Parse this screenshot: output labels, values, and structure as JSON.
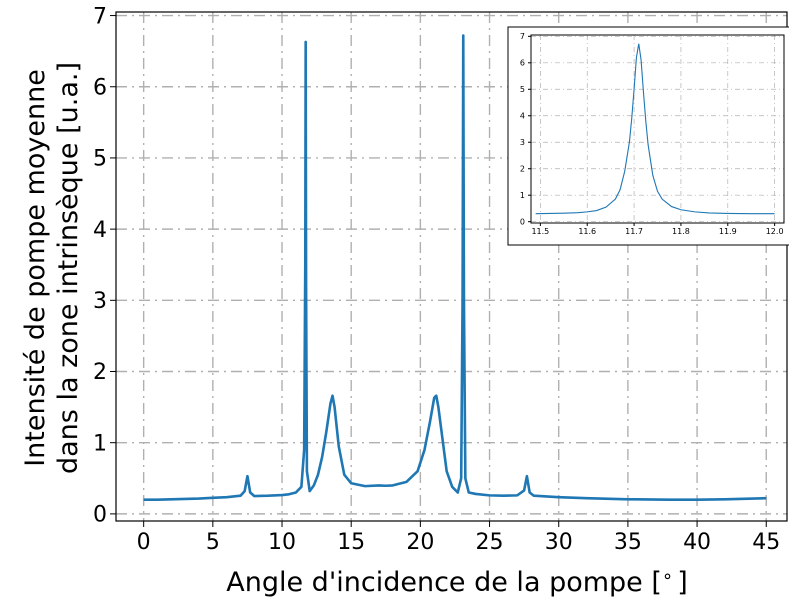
{
  "chart_data": [
    {
      "type": "line",
      "xlabel": "Angle d'incidence de la pompe [$^\\circ$]",
      "xlabel_text": "Angle d'incidence de la pompe [",
      "xlabel_unit": "∘",
      "xlabel_close": "]",
      "ylabel_line1": "Intensité de pompe moyenne",
      "ylabel_line2": "dans la zone intrinsèque [u.a.]",
      "xlim": [
        -2,
        46.5
      ],
      "ylim": [
        -0.1,
        7.05
      ],
      "xticks": [
        0,
        5,
        10,
        15,
        20,
        25,
        30,
        35,
        40,
        45
      ],
      "yticks": [
        0,
        1,
        2,
        3,
        4,
        5,
        6,
        7
      ],
      "grid": true,
      "grid_style": "dash-dot",
      "color": "#1f77b4",
      "series": [
        {
          "x": [
            0,
            1,
            2,
            3,
            4,
            5,
            6,
            7,
            7.3,
            7.5,
            7.7,
            8,
            9,
            10,
            10.5,
            11,
            11.4,
            11.6,
            11.68,
            11.71,
            11.74,
            11.8,
            12.0,
            12.3,
            12.6,
            12.9,
            13.2,
            13.5,
            13.65,
            13.8,
            14.1,
            14.5,
            15,
            16,
            17,
            17.5,
            18,
            19,
            19.8,
            20.3,
            20.7,
            21.0,
            21.15,
            21.3,
            21.6,
            21.9,
            22.3,
            22.7,
            22.95,
            23.05,
            23.1,
            23.15,
            23.25,
            23.5,
            24,
            25,
            26,
            27,
            27.5,
            27.7,
            27.9,
            28.2,
            30,
            32,
            35,
            38,
            40,
            42,
            45
          ],
          "y": [
            0.2,
            0.2,
            0.205,
            0.21,
            0.215,
            0.225,
            0.235,
            0.255,
            0.32,
            0.53,
            0.3,
            0.25,
            0.255,
            0.265,
            0.275,
            0.3,
            0.38,
            0.9,
            3.5,
            6.63,
            3.2,
            0.6,
            0.32,
            0.4,
            0.55,
            0.8,
            1.15,
            1.55,
            1.66,
            1.5,
            0.95,
            0.55,
            0.43,
            0.39,
            0.4,
            0.395,
            0.4,
            0.45,
            0.6,
            0.9,
            1.3,
            1.63,
            1.66,
            1.5,
            1.05,
            0.6,
            0.38,
            0.3,
            0.5,
            3.0,
            6.72,
            3.0,
            0.5,
            0.3,
            0.28,
            0.26,
            0.255,
            0.26,
            0.33,
            0.53,
            0.3,
            0.255,
            0.235,
            0.22,
            0.205,
            0.2,
            0.2,
            0.205,
            0.22
          ]
        }
      ]
    },
    {
      "type": "line",
      "xlabel": "",
      "ylabel": "",
      "xlim": [
        11.48,
        12.02
      ],
      "ylim": [
        -0.05,
        7.05
      ],
      "xticks": [
        11.5,
        11.6,
        11.7,
        11.8,
        11.9,
        12.0
      ],
      "xtick_labels": [
        "11.5",
        "11.6",
        "11.7",
        "11.8",
        "11.9",
        "12.0"
      ],
      "yticks": [
        0,
        1,
        2,
        3,
        4,
        5,
        6,
        7
      ],
      "grid": true,
      "grid_style": "dash-dot",
      "color": "#1f77b4",
      "series": [
        {
          "x": [
            11.49,
            11.52,
            11.55,
            11.58,
            11.6,
            11.62,
            11.64,
            11.66,
            11.67,
            11.68,
            11.69,
            11.695,
            11.7,
            11.705,
            11.71,
            11.715,
            11.72,
            11.725,
            11.73,
            11.74,
            11.75,
            11.76,
            11.78,
            11.8,
            11.83,
            11.86,
            11.9,
            11.95,
            12.0
          ],
          "y": [
            0.3,
            0.31,
            0.32,
            0.34,
            0.37,
            0.42,
            0.55,
            0.85,
            1.2,
            1.9,
            3.0,
            3.9,
            5.0,
            6.2,
            6.72,
            6.1,
            4.9,
            3.8,
            2.9,
            1.75,
            1.15,
            0.85,
            0.57,
            0.45,
            0.37,
            0.33,
            0.31,
            0.3,
            0.3
          ]
        }
      ]
    }
  ]
}
